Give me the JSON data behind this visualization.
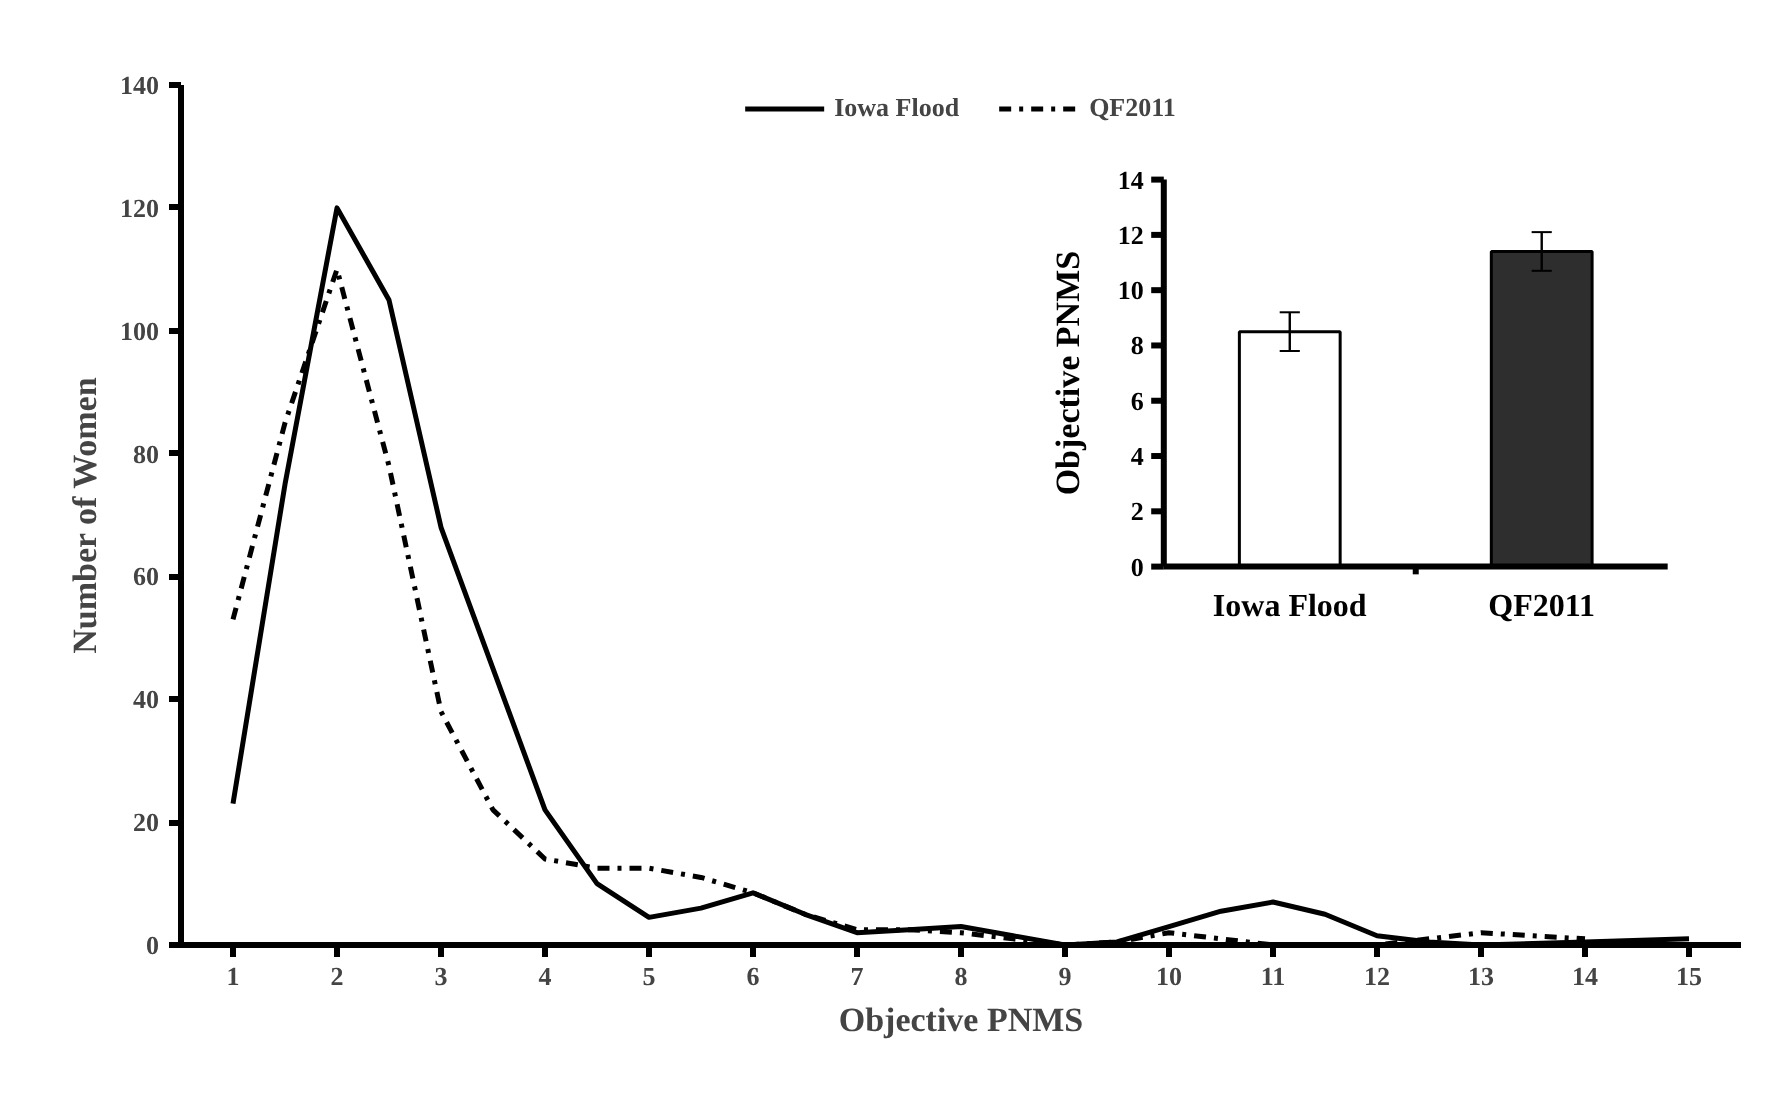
{
  "chart_data": [
    {
      "type": "line",
      "xlabel": "Objective PNMS",
      "ylabel": "Number of Women",
      "xlim": [
        0.5,
        15.5
      ],
      "xticks": [
        1,
        2,
        3,
        4,
        5,
        6,
        7,
        8,
        9,
        10,
        11,
        12,
        13,
        14,
        15
      ],
      "ylim": [
        0,
        140
      ],
      "yticks": [
        0,
        20,
        40,
        60,
        80,
        100,
        120,
        140
      ],
      "grid": false,
      "legend": "top",
      "series": [
        {
          "name": "Iowa Flood",
          "color": "#000000",
          "line_style": "solid",
          "x": [
            1,
            1.5,
            2,
            2.5,
            3,
            3.5,
            4,
            4.5,
            5,
            5.5,
            6,
            6.5,
            7,
            7.5,
            8,
            8.5,
            9,
            9.5,
            10,
            10.5,
            11,
            11.5,
            12,
            12.5,
            13,
            14,
            15
          ],
          "values": [
            23,
            75,
            120,
            105,
            68,
            45,
            22,
            10,
            4.5,
            6,
            8.5,
            5,
            2,
            2.5,
            3,
            1.5,
            0,
            0.5,
            3,
            5.5,
            7,
            5,
            1.5,
            0.5,
            0,
            0.5,
            1
          ]
        },
        {
          "name": "QF2011",
          "color": "#000000",
          "line_style": "dashdot",
          "x": [
            1,
            1.5,
            2,
            2.5,
            3,
            3.5,
            4,
            4.5,
            5,
            5.5,
            6,
            6.5,
            7,
            7.5,
            8,
            8.5,
            9,
            9.5,
            10,
            10.5,
            11,
            12,
            12.5,
            13,
            13.5,
            14
          ],
          "values": [
            53,
            85,
            110,
            78,
            38,
            22,
            14,
            12.5,
            12.5,
            11,
            8.5,
            5,
            2.5,
            2.5,
            2,
            1,
            0,
            0.5,
            2,
            1,
            0,
            0,
            1,
            2,
            1.5,
            1
          ]
        }
      ]
    },
    {
      "type": "bar",
      "ylabel": "Objective PNMS",
      "categories": [
        "Iowa Flood",
        "QF2011"
      ],
      "values": [
        8.5,
        11.4
      ],
      "errors": [
        0.7,
        0.7
      ],
      "colors": [
        "#ffffff",
        "#2e2e2e"
      ],
      "ylim": [
        0,
        14
      ],
      "yticks": [
        0,
        2,
        4,
        6,
        8,
        10,
        12,
        14
      ],
      "grid": false
    }
  ]
}
